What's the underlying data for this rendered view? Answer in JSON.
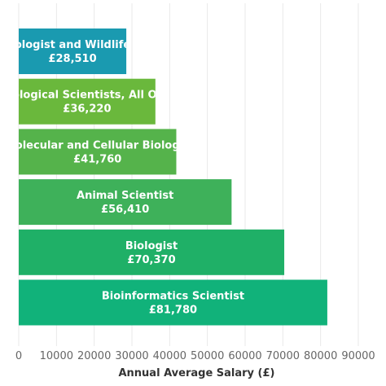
{
  "chart_data": {
    "type": "bar",
    "orientation": "horizontal",
    "title": "",
    "xlabel": "Annual Average Salary (£)",
    "ylabel": "",
    "xlim": [
      0,
      90000
    ],
    "xticks": [
      0,
      10000,
      20000,
      30000,
      40000,
      50000,
      60000,
      70000,
      80000,
      90000
    ],
    "grid": true,
    "bars": [
      {
        "category": "Biologist and Wildlife",
        "display_name": "ologist and Wildlife",
        "value": 28510,
        "value_label": "£28,510",
        "color": "#1a9ab0"
      },
      {
        "category": "Biological Scientists, All Ot",
        "display_name": "ological Scientists, All Ot",
        "value": 36220,
        "value_label": "£36,220",
        "color": "#6ab83c"
      },
      {
        "category": "Molecular and Cellular Biolog",
        "display_name": "olecular and Cellular Biolog",
        "value": 41760,
        "value_label": "£41,760",
        "color": "#55b34b"
      },
      {
        "category": "Animal Scientist",
        "display_name": "Animal Scientist",
        "value": 56410,
        "value_label": "£56,410",
        "color": "#3eb15a"
      },
      {
        "category": "Biologist",
        "display_name": "Biologist",
        "value": 70370,
        "value_label": "£70,370",
        "color": "#1fb067"
      },
      {
        "category": "Bioinformatics Scientist",
        "display_name": "Bioinformatics Scientist",
        "value": 81780,
        "value_label": "£81,780",
        "color": "#11b27a"
      }
    ]
  }
}
